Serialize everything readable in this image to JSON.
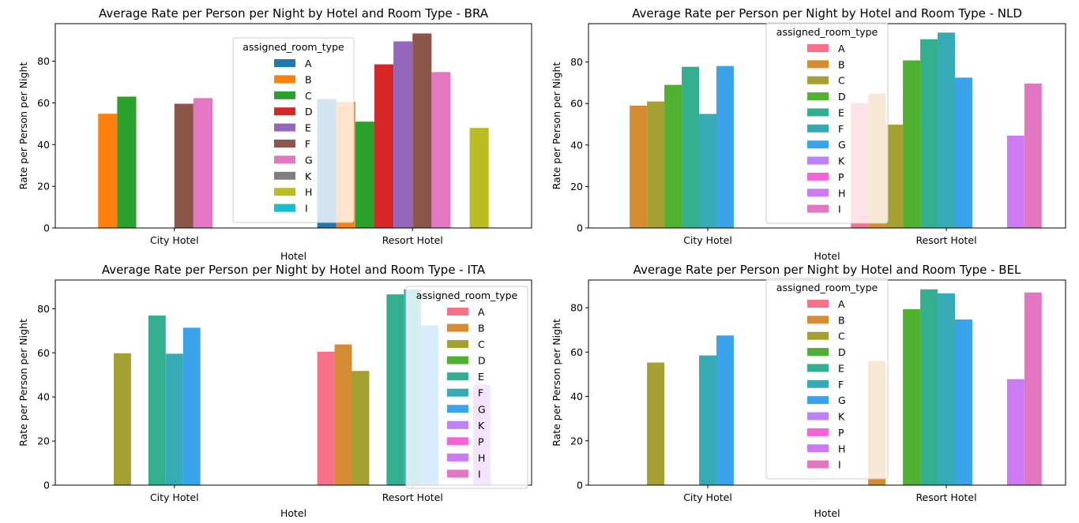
{
  "chart_data": [
    {
      "type": "bar",
      "title": "Average Rate per Person per Night by Hotel and Room Type - BRA",
      "xlabel": "Hotel",
      "ylabel": "Rate per Person per Night",
      "categories": [
        "City Hotel",
        "Resort Hotel"
      ],
      "ylim": [
        0,
        98
      ],
      "yticks": [
        0,
        20,
        40,
        60,
        80
      ],
      "legend": {
        "title": "assigned_room_type",
        "placement": "upper center"
      },
      "series": [
        {
          "name": "A",
          "color": "#1f77b4",
          "values": [
            null,
            61.8
          ]
        },
        {
          "name": "B",
          "color": "#ff7f0e",
          "values": [
            54.8,
            60.5
          ]
        },
        {
          "name": "C",
          "color": "#2ca02c",
          "values": [
            63.0,
            51.0
          ]
        },
        {
          "name": "D",
          "color": "#d62728",
          "values": [
            null,
            78.5
          ]
        },
        {
          "name": "E",
          "color": "#9467bd",
          "values": [
            null,
            89.5
          ]
        },
        {
          "name": "F",
          "color": "#8c564b",
          "values": [
            59.6,
            93.3
          ]
        },
        {
          "name": "G",
          "color": "#e377c2",
          "values": [
            62.3,
            74.8
          ]
        },
        {
          "name": "K",
          "color": "#7f7f7f",
          "values": [
            null,
            null
          ]
        },
        {
          "name": "H",
          "color": "#bcbd22",
          "values": [
            null,
            48.0
          ]
        },
        {
          "name": "I",
          "color": "#17becf",
          "values": [
            null,
            null
          ]
        }
      ]
    },
    {
      "type": "bar",
      "title": "Average Rate per Person per Night by Hotel and Room Type - NLD",
      "xlabel": "Hotel",
      "ylabel": "Rate per Person per Night",
      "categories": [
        "City Hotel",
        "Resort Hotel"
      ],
      "ylim": [
        0,
        98.5
      ],
      "yticks": [
        0,
        20,
        40,
        60,
        80
      ],
      "legend": {
        "title": "assigned_room_type",
        "placement": "upper center"
      },
      "series": [
        {
          "name": "A",
          "color": "#f77189",
          "values": [
            null,
            60.2
          ]
        },
        {
          "name": "B",
          "color": "#d58c32",
          "values": [
            59.0,
            64.8
          ]
        },
        {
          "name": "C",
          "color": "#a4a031",
          "values": [
            61.0,
            49.8
          ]
        },
        {
          "name": "D",
          "color": "#50b131",
          "values": [
            69.0,
            80.8
          ]
        },
        {
          "name": "E",
          "color": "#34ae91",
          "values": [
            77.7,
            91.0
          ]
        },
        {
          "name": "F",
          "color": "#37abb5",
          "values": [
            55.0,
            94.2
          ]
        },
        {
          "name": "G",
          "color": "#3ba3ec",
          "values": [
            78.1,
            72.5
          ]
        },
        {
          "name": "K",
          "color": "#bb83f4",
          "values": [
            null,
            null
          ]
        },
        {
          "name": "P",
          "color": "#f564d4",
          "values": [
            null,
            null
          ]
        },
        {
          "name": "H",
          "color": "#cc7af4",
          "values": [
            null,
            44.5
          ]
        },
        {
          "name": "I",
          "color": "#e376c0",
          "values": [
            null,
            69.6
          ]
        }
      ]
    },
    {
      "type": "bar",
      "title": "Average Rate per Person per Night by Hotel and Room Type - ITA",
      "xlabel": "Hotel",
      "ylabel": "Rate per Person per Night",
      "categories": [
        "City Hotel",
        "Resort Hotel"
      ],
      "ylim": [
        0,
        93
      ],
      "yticks": [
        0,
        20,
        40,
        60,
        80
      ],
      "legend": {
        "title": "assigned_room_type",
        "placement": "upper right"
      },
      "series": [
        {
          "name": "A",
          "color": "#f77189",
          "values": [
            null,
            60.5
          ]
        },
        {
          "name": "B",
          "color": "#d58c32",
          "values": [
            null,
            63.8
          ]
        },
        {
          "name": "C",
          "color": "#a4a031",
          "values": [
            59.8,
            51.8
          ]
        },
        {
          "name": "D",
          "color": "#50b131",
          "values": [
            null,
            null
          ]
        },
        {
          "name": "E",
          "color": "#34ae91",
          "values": [
            76.9,
            86.5
          ]
        },
        {
          "name": "F",
          "color": "#37abb5",
          "values": [
            59.6,
            88.8
          ]
        },
        {
          "name": "G",
          "color": "#3ba3ec",
          "values": [
            71.4,
            72.5
          ]
        },
        {
          "name": "K",
          "color": "#bb83f4",
          "values": [
            null,
            null
          ]
        },
        {
          "name": "P",
          "color": "#f564d4",
          "values": [
            null,
            null
          ]
        },
        {
          "name": "H",
          "color": "#cc7af4",
          "values": [
            null,
            45.5
          ]
        },
        {
          "name": "I",
          "color": "#e376c0",
          "values": [
            null,
            null
          ]
        }
      ]
    },
    {
      "type": "bar",
      "title": "Average Rate per Person per Night by Hotel and Room Type - BEL",
      "xlabel": "Hotel",
      "ylabel": "Rate per Person per Night",
      "categories": [
        "City Hotel",
        "Resort Hotel"
      ],
      "ylim": [
        0,
        92.5
      ],
      "yticks": [
        0,
        20,
        40,
        60,
        80
      ],
      "legend": {
        "title": "assigned_room_type",
        "placement": "upper center"
      },
      "series": [
        {
          "name": "A",
          "color": "#f77189",
          "values": [
            null,
            null
          ]
        },
        {
          "name": "B",
          "color": "#d58c32",
          "values": [
            null,
            56.0
          ]
        },
        {
          "name": "C",
          "color": "#a4a031",
          "values": [
            55.3,
            null
          ]
        },
        {
          "name": "D",
          "color": "#50b131",
          "values": [
            null,
            79.4
          ]
        },
        {
          "name": "E",
          "color": "#34ae91",
          "values": [
            null,
            88.3
          ]
        },
        {
          "name": "F",
          "color": "#37abb5",
          "values": [
            58.5,
            86.5
          ]
        },
        {
          "name": "G",
          "color": "#3ba3ec",
          "values": [
            67.5,
            74.7
          ]
        },
        {
          "name": "K",
          "color": "#bb83f4",
          "values": [
            null,
            null
          ]
        },
        {
          "name": "P",
          "color": "#f564d4",
          "values": [
            null,
            null
          ]
        },
        {
          "name": "H",
          "color": "#cc7af4",
          "values": [
            null,
            47.8
          ]
        },
        {
          "name": "I",
          "color": "#e376c0",
          "values": [
            null,
            86.9
          ]
        }
      ]
    }
  ]
}
